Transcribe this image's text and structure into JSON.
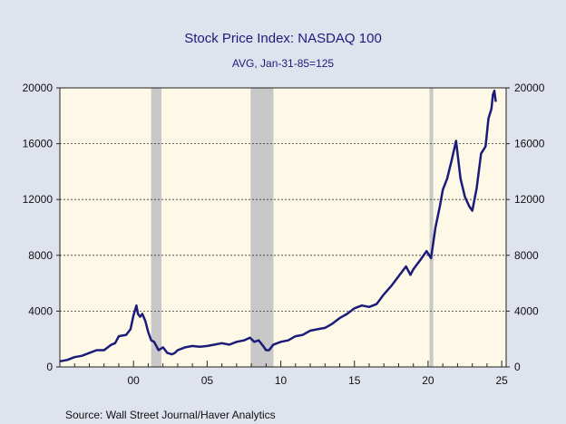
{
  "chart_data": {
    "type": "line",
    "title": "Stock Price Index: NASDAQ 100",
    "subtitle": "AVG, Jan-31-85=125",
    "source": "Source:  Wall Street Journal/Haver Analytics",
    "xlim": [
      1995.0,
      2025.3
    ],
    "ylim": [
      0,
      20000
    ],
    "x_ticks": [
      {
        "value": 2000,
        "label": "00"
      },
      {
        "value": 2005,
        "label": "05"
      },
      {
        "value": 2010,
        "label": "10"
      },
      {
        "value": 2015,
        "label": "15"
      },
      {
        "value": 2020,
        "label": "20"
      },
      {
        "value": 2025,
        "label": "25"
      }
    ],
    "y_ticks_left": [
      0,
      4000,
      8000,
      12000,
      16000,
      20000
    ],
    "y_ticks_right": [
      0,
      4000,
      8000,
      12000,
      16000,
      20000
    ],
    "grid": "horizontal-dashed",
    "recessions": [
      {
        "start": 2001.2,
        "end": 2001.9
      },
      {
        "start": 2007.95,
        "end": 2009.5
      },
      {
        "start": 2020.1,
        "end": 2020.35
      }
    ],
    "colors": {
      "line": "#1b1b7a",
      "plot_background": "#fdf9e6",
      "recession": "#c8c8c8",
      "page_background": "#dfe3ee"
    },
    "series": [
      {
        "x": [
          1995.0,
          1995.5,
          1996.0,
          1996.5,
          1997.0,
          1997.5,
          1998.0,
          1998.5,
          1998.75,
          1999.0,
          1999.5,
          1999.8,
          2000.0,
          2000.2,
          2000.3,
          2000.45,
          2000.6,
          2000.8,
          2001.0,
          2001.2,
          2001.4,
          2001.7,
          2002.0,
          2002.3,
          2002.6,
          2002.8,
          2003.0,
          2003.5,
          2004.0,
          2004.5,
          2005.0,
          2005.5,
          2006.0,
          2006.5,
          2007.0,
          2007.5,
          2007.9,
          2008.2,
          2008.5,
          2008.8,
          2009.0,
          2009.2,
          2009.5,
          2010.0,
          2010.5,
          2011.0,
          2011.5,
          2012.0,
          2012.5,
          2013.0,
          2013.5,
          2014.0,
          2014.5,
          2015.0,
          2015.5,
          2016.0,
          2016.5,
          2017.0,
          2017.5,
          2018.0,
          2018.5,
          2018.8,
          2019.0,
          2019.5,
          2019.9,
          2020.2,
          2020.5,
          2020.8,
          2021.0,
          2021.3,
          2021.6,
          2021.9,
          2022.2,
          2022.5,
          2022.8,
          2023.0,
          2023.3,
          2023.6,
          2023.9,
          2024.1,
          2024.3,
          2024.4,
          2024.5,
          2024.6
        ],
        "y": [
          400,
          500,
          700,
          800,
          1000,
          1200,
          1200,
          1600,
          1700,
          2200,
          2300,
          2700,
          3700,
          4400,
          3800,
          3600,
          3800,
          3300,
          2500,
          1900,
          1800,
          1200,
          1400,
          1000,
          900,
          1000,
          1200,
          1400,
          1500,
          1450,
          1500,
          1600,
          1700,
          1600,
          1800,
          1900,
          2100,
          1800,
          1900,
          1500,
          1200,
          1200,
          1600,
          1800,
          1900,
          2200,
          2300,
          2600,
          2700,
          2800,
          3100,
          3500,
          3800,
          4200,
          4400,
          4300,
          4500,
          5200,
          5800,
          6500,
          7200,
          6600,
          7000,
          7700,
          8300,
          7800,
          10000,
          11500,
          12700,
          13500,
          14800,
          16200,
          13500,
          12200,
          11500,
          11200,
          12800,
          15300,
          15800,
          17800,
          18500,
          19500,
          19800,
          19000
        ]
      }
    ]
  }
}
